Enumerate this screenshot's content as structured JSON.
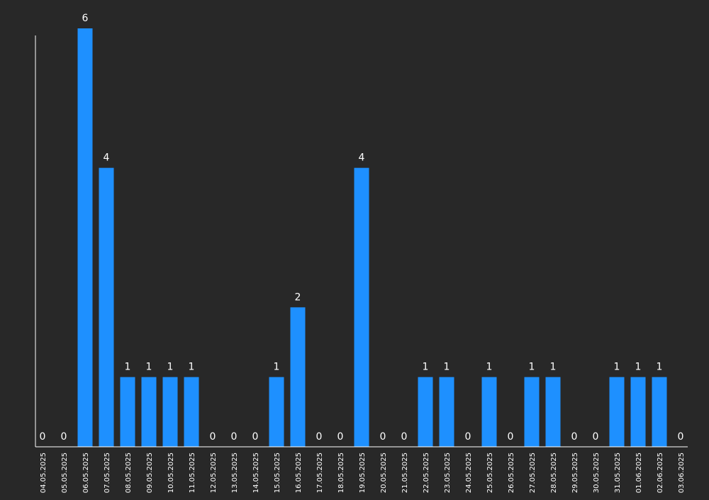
{
  "colors": {
    "background": "#282828",
    "bar": "#1e90ff",
    "axis": "#ffffff",
    "text": "#ffffff"
  },
  "chart_data": {
    "type": "bar",
    "title": "",
    "xlabel": "",
    "ylabel": "",
    "ylim": [
      0,
      6
    ],
    "grid": false,
    "legend": "none",
    "data_labels": true,
    "categories": [
      "04.05.2025",
      "05.05.2025",
      "06.05.2025",
      "07.05.2025",
      "08.05.2025",
      "09.05.2025",
      "10.05.2025",
      "11.05.2025",
      "12.05.2025",
      "13.05.2025",
      "14.05.2025",
      "15.05.2025",
      "16.05.2025",
      "17.05.2025",
      "18.05.2025",
      "19.05.2025",
      "20.05.2025",
      "21.05.2025",
      "22.05.2025",
      "23.05.2025",
      "24.05.2025",
      "25.05.2025",
      "26.05.2025",
      "27.05.2025",
      "28.05.2025",
      "29.05.2025",
      "30.05.2025",
      "31.05.2025",
      "01.06.2025",
      "02.06.2025",
      "03.06.2025"
    ],
    "values": [
      0,
      0,
      6,
      4,
      1,
      1,
      1,
      1,
      0,
      0,
      0,
      1,
      2,
      0,
      0,
      4,
      0,
      0,
      1,
      1,
      0,
      1,
      0,
      1,
      1,
      0,
      0,
      1,
      1,
      1,
      0
    ]
  }
}
